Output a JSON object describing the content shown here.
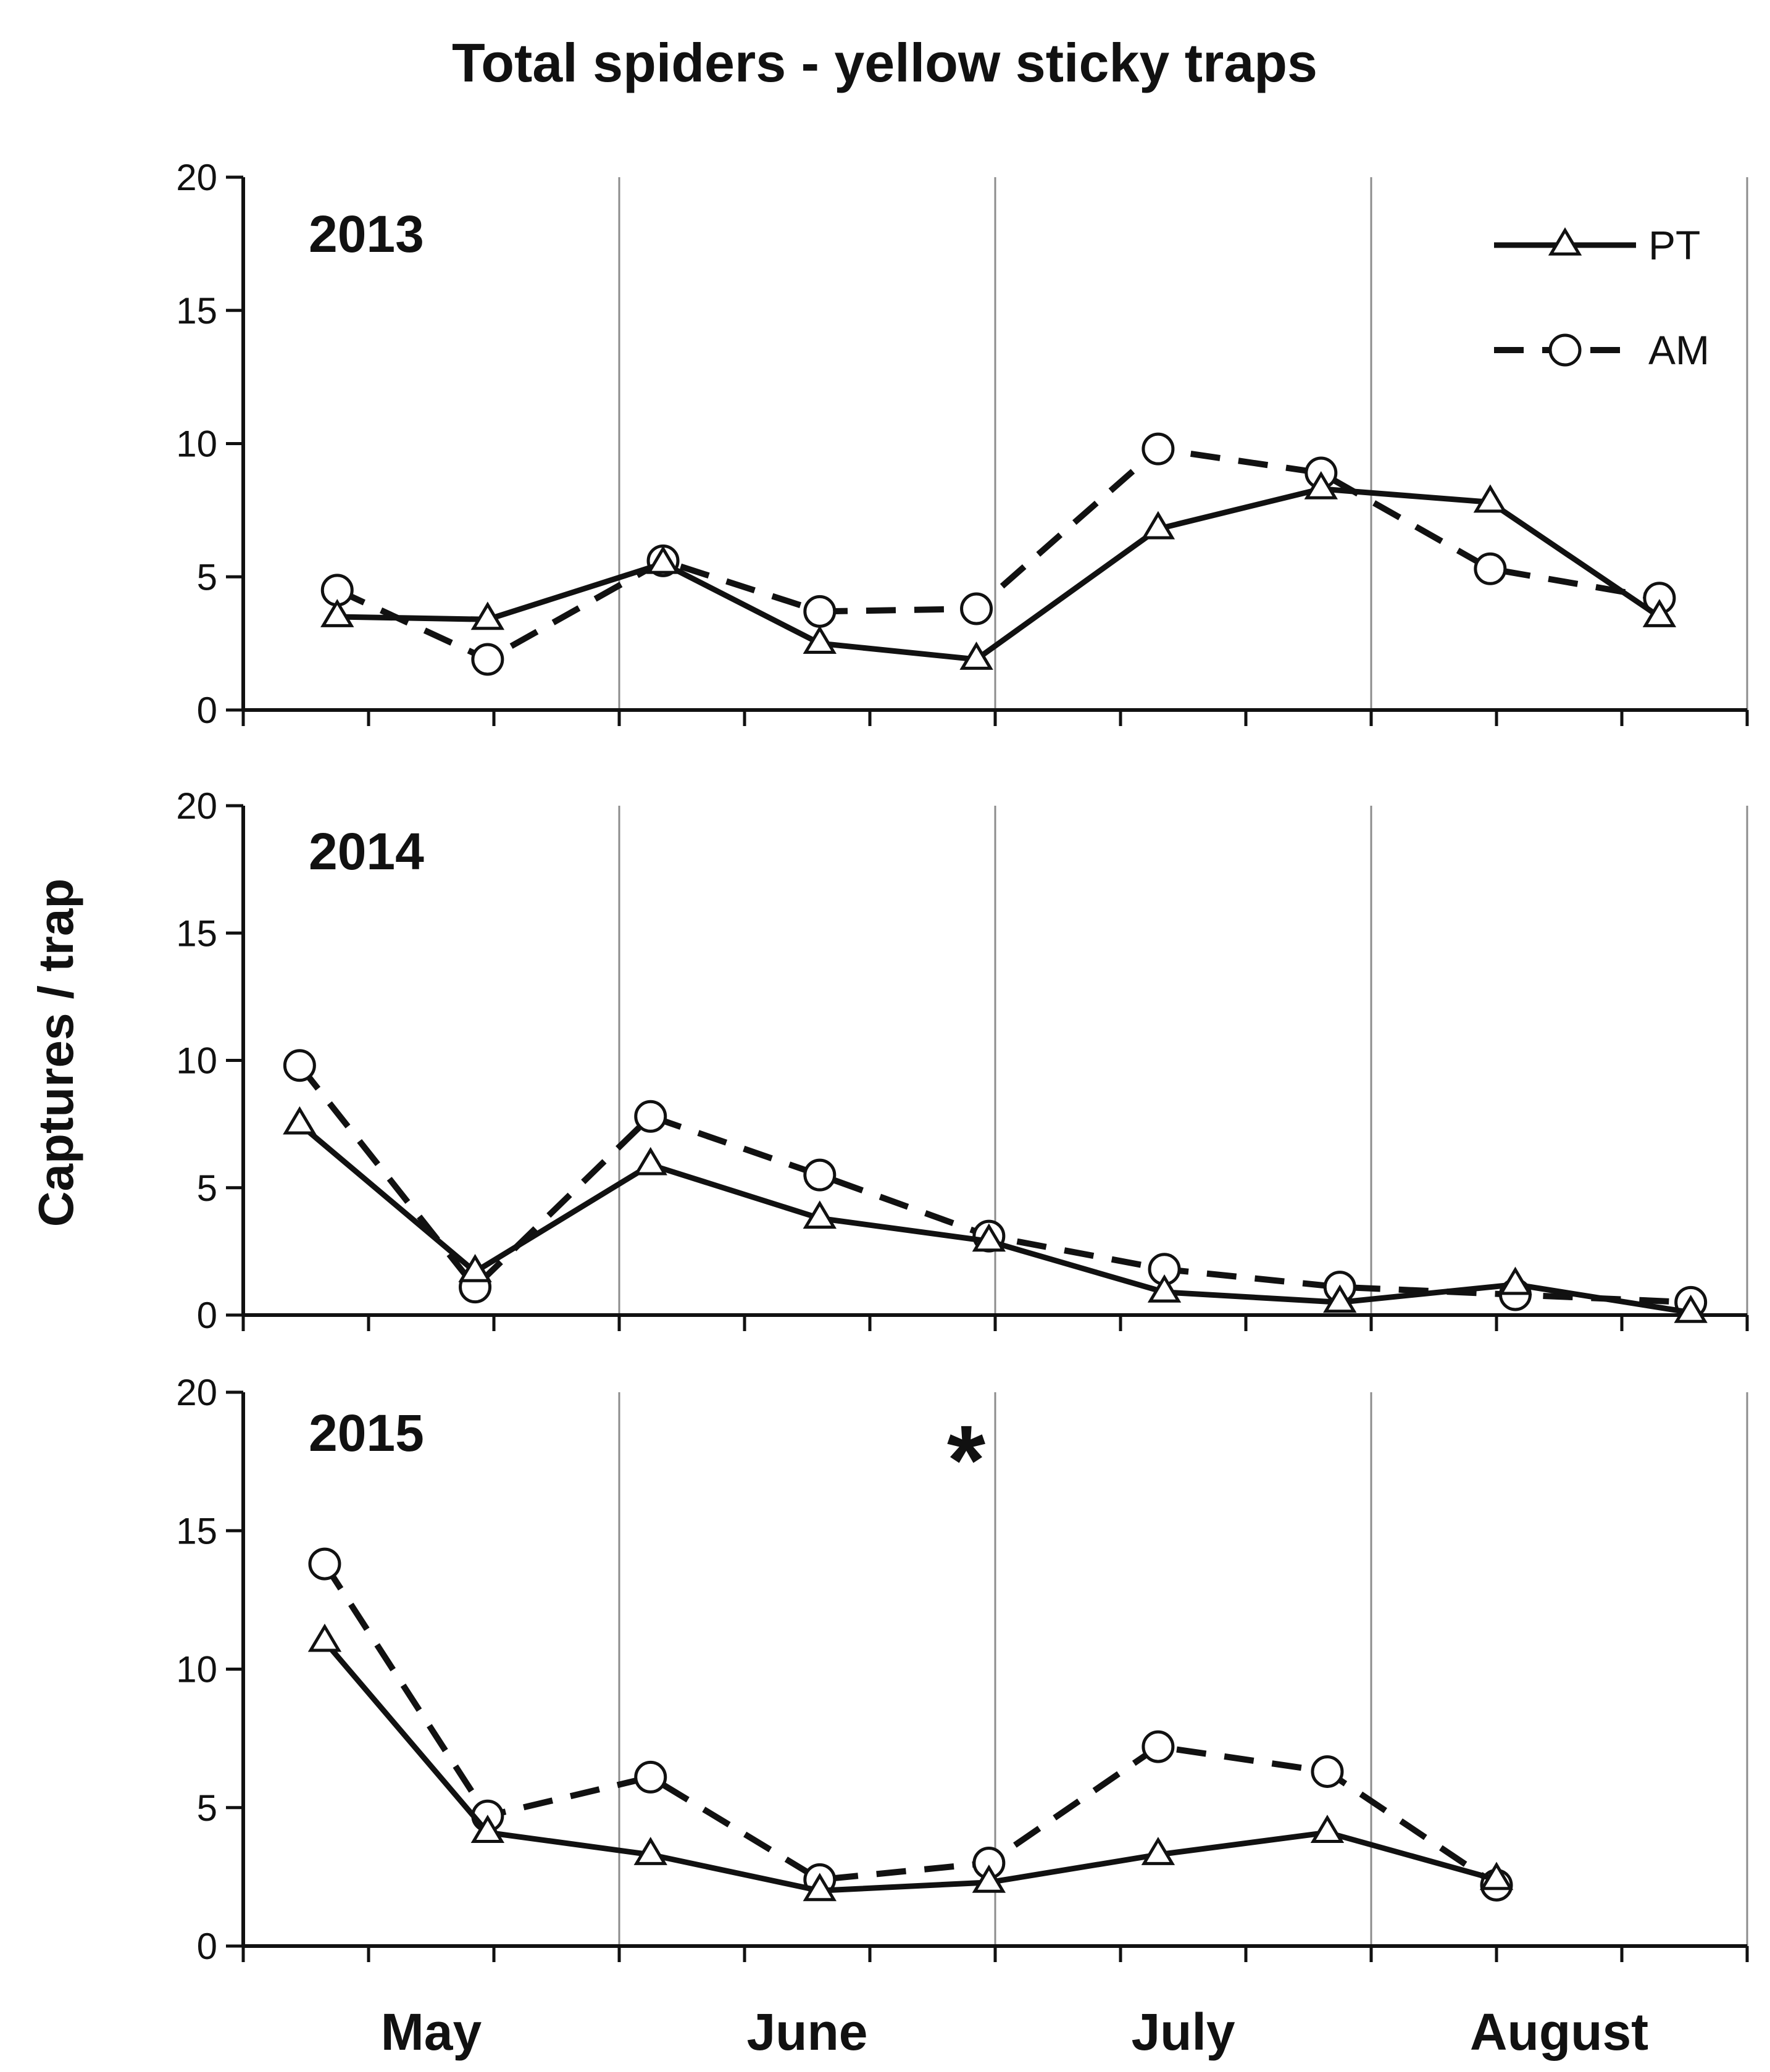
{
  "chart_data": {
    "type": "line",
    "title": "Total spiders - yellow sticky traps",
    "ylabel": "Captures / trap",
    "xlabel": "",
    "ylim": [
      0,
      20
    ],
    "yticks": [
      "0",
      "5",
      "10",
      "15",
      "20"
    ],
    "months": [
      "May",
      "June",
      "July",
      "August"
    ],
    "legend": [
      {
        "name": "PT",
        "marker": "triangle",
        "line": "solid"
      },
      {
        "name": "AM",
        "marker": "circle",
        "line": "dashed"
      }
    ],
    "panels": [
      {
        "year": "2013",
        "annotation": "",
        "series": [
          {
            "name": "PT",
            "x": [
              0.75,
              1.95,
              3.35,
              4.6,
              5.85,
              7.3,
              8.6,
              9.95,
              11.3
            ],
            "values": [
              3.5,
              3.4,
              5.5,
              2.5,
              1.9,
              6.8,
              8.3,
              7.8,
              3.5
            ]
          },
          {
            "name": "AM",
            "x": [
              0.75,
              1.95,
              3.35,
              4.6,
              5.85,
              7.3,
              8.6,
              9.95,
              11.3
            ],
            "values": [
              4.5,
              1.9,
              5.6,
              3.7,
              3.8,
              9.8,
              8.9,
              5.3,
              4.2
            ]
          }
        ]
      },
      {
        "year": "2014",
        "annotation": "",
        "series": [
          {
            "name": "PT",
            "x": [
              0.45,
              1.85,
              3.25,
              4.6,
              5.95,
              7.35,
              8.75,
              10.15,
              11.55
            ],
            "values": [
              7.5,
              1.7,
              5.9,
              3.8,
              2.9,
              0.9,
              0.5,
              1.2,
              0.1
            ]
          },
          {
            "name": "AM",
            "x": [
              0.45,
              1.85,
              3.25,
              4.6,
              5.95,
              7.35,
              8.75,
              10.15,
              11.55
            ],
            "values": [
              9.8,
              1.1,
              7.8,
              5.5,
              3.1,
              1.8,
              1.1,
              0.8,
              0.5
            ]
          }
        ]
      },
      {
        "year": "2015",
        "annotation": "*",
        "series": [
          {
            "name": "PT",
            "x": [
              0.65,
              1.95,
              3.25,
              4.6,
              5.95,
              7.3,
              8.65,
              10.0
            ],
            "values": [
              11.0,
              4.1,
              3.3,
              2.0,
              2.3,
              3.3,
              4.1,
              2.4
            ]
          },
          {
            "name": "AM",
            "x": [
              0.65,
              1.95,
              3.25,
              4.6,
              5.95,
              7.3,
              8.65,
              10.0
            ],
            "values": [
              13.8,
              4.7,
              6.1,
              2.4,
              3.0,
              7.2,
              6.3,
              2.2
            ]
          }
        ]
      }
    ]
  }
}
